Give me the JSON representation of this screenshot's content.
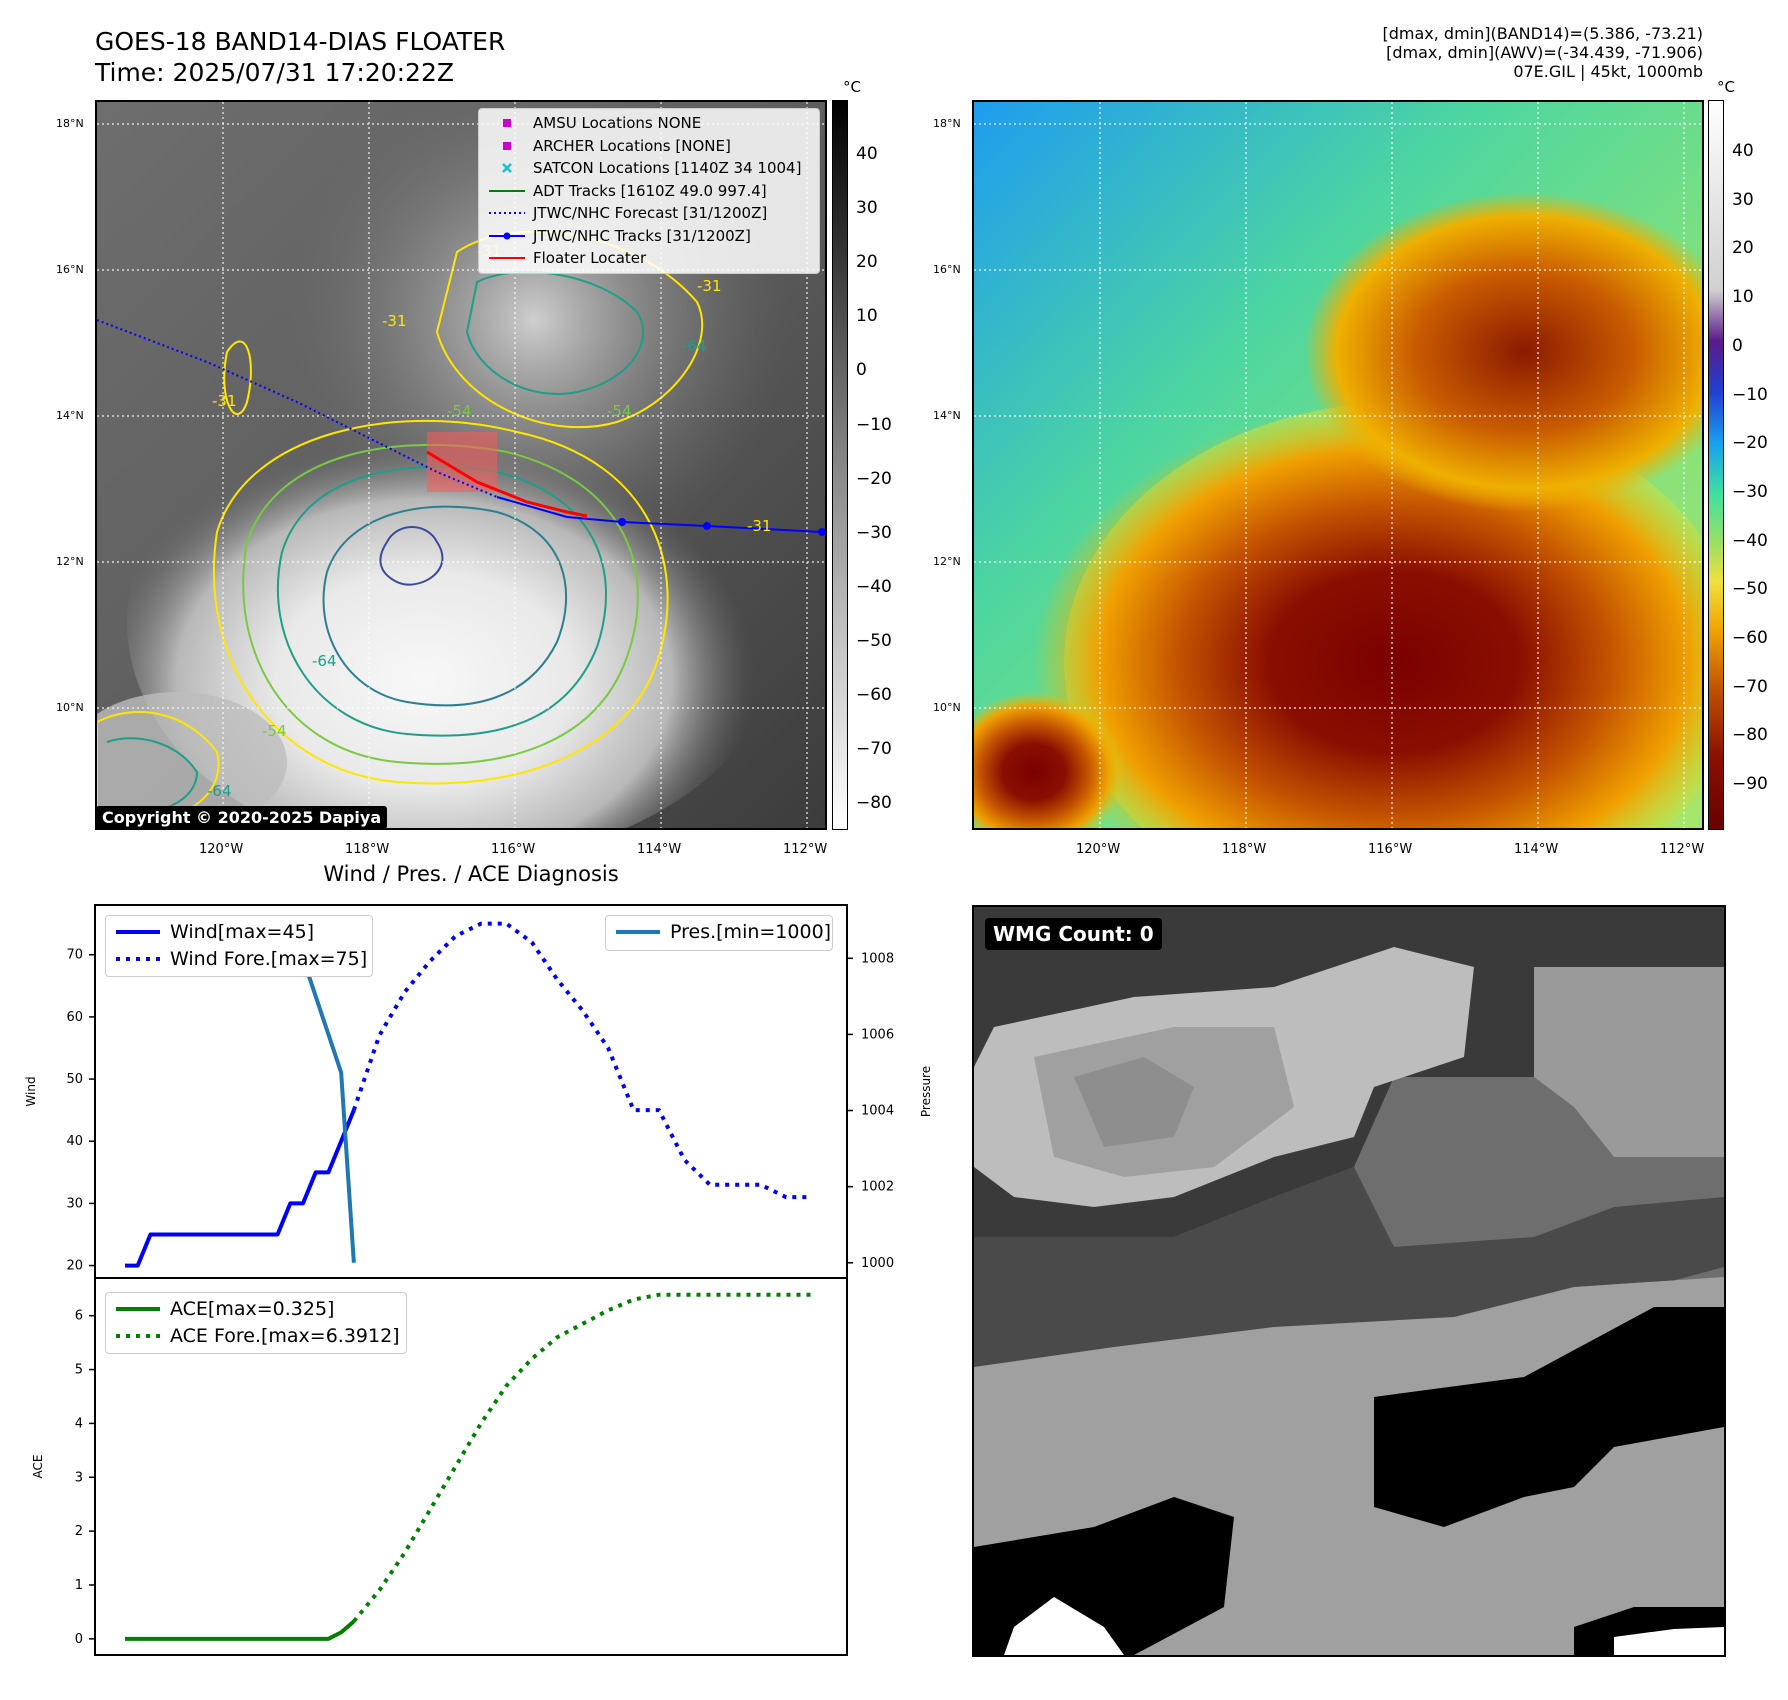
{
  "header": {
    "title_line1": "GOES-18 BAND14-DIAS FLOATER",
    "title_line2": "Time: 2025/07/31 17:20:22Z",
    "info_line1": "[dmax, dmin](BAND14)=(5.386, -73.21)",
    "info_line2": "[dmax, dmin](AWV)=(-34.439, -71.906)",
    "info_line3": "07E.GIL | 45kt, 1000mb"
  },
  "ir_panel": {
    "lat_labels": [
      "18°N",
      "16°N",
      "14°N",
      "12°N",
      "10°N"
    ],
    "lon_labels": [
      "120°W",
      "118°W",
      "116°W",
      "114°W",
      "112°W"
    ],
    "colorbar_unit": "°C",
    "colorbar_ticks": [
      "40",
      "30",
      "20",
      "10",
      "0",
      "−10",
      "−20",
      "−30",
      "−40",
      "−50",
      "−60",
      "−70",
      "−80"
    ],
    "copyright": "Copyright © 2020-2025 Dapiya",
    "contour_labels": [
      "-31",
      "-31",
      "-31",
      "-31",
      "-54",
      "-54",
      "-54",
      "-64",
      "-64",
      "-64",
      "-31"
    ],
    "legend": [
      {
        "label": "AMSU Locations NONE",
        "symbol": "square",
        "color": "#cc00cc"
      },
      {
        "label": "ARCHER Locations [NONE]",
        "symbol": "square",
        "color": "#cc00cc"
      },
      {
        "label": "SATCON Locations [1140Z 34 1004]",
        "symbol": "x",
        "color": "#17becf"
      },
      {
        "label": "ADT Tracks [1610Z 49.0 997.4]",
        "symbol": "line",
        "color": "#008000"
      },
      {
        "label": "JTWC/NHC Forecast [31/1200Z]",
        "symbol": "dotted",
        "color": "#0000ff"
      },
      {
        "label": "JTWC/NHC Tracks [31/1200Z]",
        "symbol": "line-dot",
        "color": "#0000ff"
      },
      {
        "label": "Floater Locater",
        "symbol": "line",
        "color": "#ff0000"
      }
    ]
  },
  "wv_panel": {
    "lat_labels": [
      "18°N",
      "16°N",
      "14°N",
      "12°N",
      "10°N"
    ],
    "lon_labels": [
      "120°W",
      "118°W",
      "116°W",
      "114°W",
      "112°W"
    ],
    "colorbar_unit": "°C",
    "colorbar_ticks": [
      "40",
      "30",
      "20",
      "10",
      "0",
      "−10",
      "−20",
      "−30",
      "−40",
      "−50",
      "−60",
      "−70",
      "−80",
      "−90"
    ]
  },
  "wmg_panel": {
    "label": "WMG Count: 0"
  },
  "chart_data": [
    {
      "type": "line",
      "title": "Wind / Pres. / ACE Diagnosis",
      "ylabel": "Wind",
      "ylabel_right": "Pressure",
      "ylim": [
        18,
        78
      ],
      "ylim_right": [
        999.6,
        1009.4
      ],
      "yticks": [
        20,
        30,
        40,
        50,
        60,
        70
      ],
      "yticks_right": [
        1000,
        1002,
        1004,
        1006,
        1008
      ],
      "series": [
        {
          "name": "Wind[max=45]",
          "axis": "left",
          "style": "solid",
          "color": "#0000ff",
          "x": [
            0,
            1,
            2,
            3,
            4,
            5,
            6,
            7,
            8,
            9,
            10,
            11,
            12,
            13,
            14,
            15,
            16,
            17,
            18
          ],
          "values": [
            20,
            20,
            25,
            25,
            25,
            25,
            25,
            25,
            25,
            25,
            25,
            25,
            25,
            30,
            30,
            35,
            35,
            40,
            45
          ]
        },
        {
          "name": "Wind Fore.[max=75]",
          "axis": "left",
          "style": "dotted",
          "color": "#0000ff",
          "x": [
            18,
            20,
            22,
            24,
            26,
            28,
            30,
            32,
            34,
            36,
            38,
            40,
            42,
            44,
            46,
            48,
            50,
            52,
            54
          ],
          "values": [
            45,
            57,
            64,
            69,
            73,
            75,
            75,
            72,
            66,
            61,
            55,
            45,
            45,
            37,
            33,
            33,
            33,
            31,
            31
          ]
        },
        {
          "name": "Pres.[min=1000]",
          "axis": "right",
          "style": "solid",
          "color": "#1f77b4",
          "x": [
            3,
            10,
            12,
            14,
            16,
            17,
            18
          ],
          "values": [
            1009,
            1009,
            1008,
            1008,
            1006,
            1005,
            1000
          ]
        }
      ]
    },
    {
      "type": "line",
      "ylabel": "ACE",
      "ylim": [
        -0.3,
        6.7
      ],
      "yticks": [
        0,
        1,
        2,
        3,
        4,
        5,
        6
      ],
      "series": [
        {
          "name": "ACE[max=0.325]",
          "style": "solid",
          "color": "#008000",
          "x": [
            0,
            16,
            17,
            18
          ],
          "values": [
            0,
            0,
            0.12,
            0.325
          ]
        },
        {
          "name": "ACE Fore.[max=6.3912]",
          "style": "dotted",
          "color": "#008000",
          "x": [
            18,
            20,
            22,
            24,
            26,
            28,
            30,
            32,
            34,
            36,
            38,
            40,
            42,
            44,
            46,
            48,
            50,
            52,
            54
          ],
          "values": [
            0.325,
            0.9,
            1.6,
            2.4,
            3.2,
            4.0,
            4.7,
            5.2,
            5.6,
            5.85,
            6.1,
            6.3,
            6.39,
            6.39,
            6.39,
            6.39,
            6.39,
            6.39,
            6.39
          ]
        }
      ]
    }
  ]
}
